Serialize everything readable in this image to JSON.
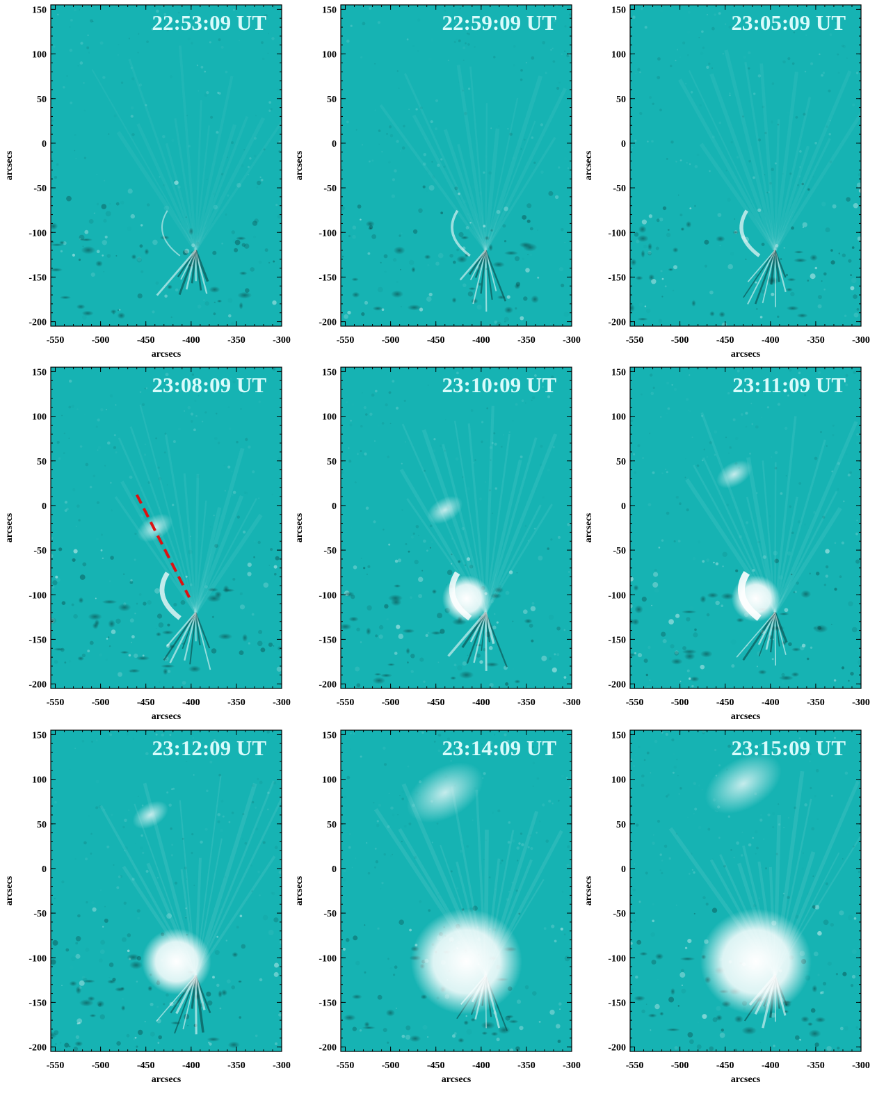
{
  "figure": {
    "x_axis_label": "arcsecs",
    "y_axis_label": "arcsecs",
    "x_ticks": [
      "-550",
      "-500",
      "-450",
      "-400",
      "-350",
      "-300"
    ],
    "y_ticks": [
      "150",
      "100",
      "50",
      "0",
      "-50",
      "-100",
      "-150",
      "-200"
    ],
    "x_range": [
      -555,
      -300
    ],
    "y_range": [
      -205,
      155
    ],
    "background_color": "#16b3b3",
    "marker_color": "#dd1111",
    "panels": [
      {
        "time": "22:53:09 UT",
        "has_x_label": true,
        "has_y_label": true
      },
      {
        "time": "22:59:09 UT",
        "has_x_label": false,
        "has_y_label": true
      },
      {
        "time": "23:05:09 UT",
        "has_x_label": true,
        "has_y_label": true
      },
      {
        "time": "23:08:09 UT",
        "has_x_label": true,
        "has_y_label": true,
        "slit": {
          "from": [
            -460,
            12
          ],
          "to": [
            -402,
            -103
          ]
        }
      },
      {
        "time": "23:10:09 UT",
        "has_x_label": false,
        "has_y_label": true
      },
      {
        "time": "23:11:09 UT",
        "has_x_label": true,
        "has_y_label": true
      },
      {
        "time": "23:12:09 UT",
        "has_x_label": true,
        "has_y_label": true
      },
      {
        "time": "23:14:09 UT",
        "has_x_label": true,
        "has_y_label": true
      },
      {
        "time": "23:15:09 UT",
        "has_x_label": true,
        "has_y_label": true
      }
    ]
  }
}
